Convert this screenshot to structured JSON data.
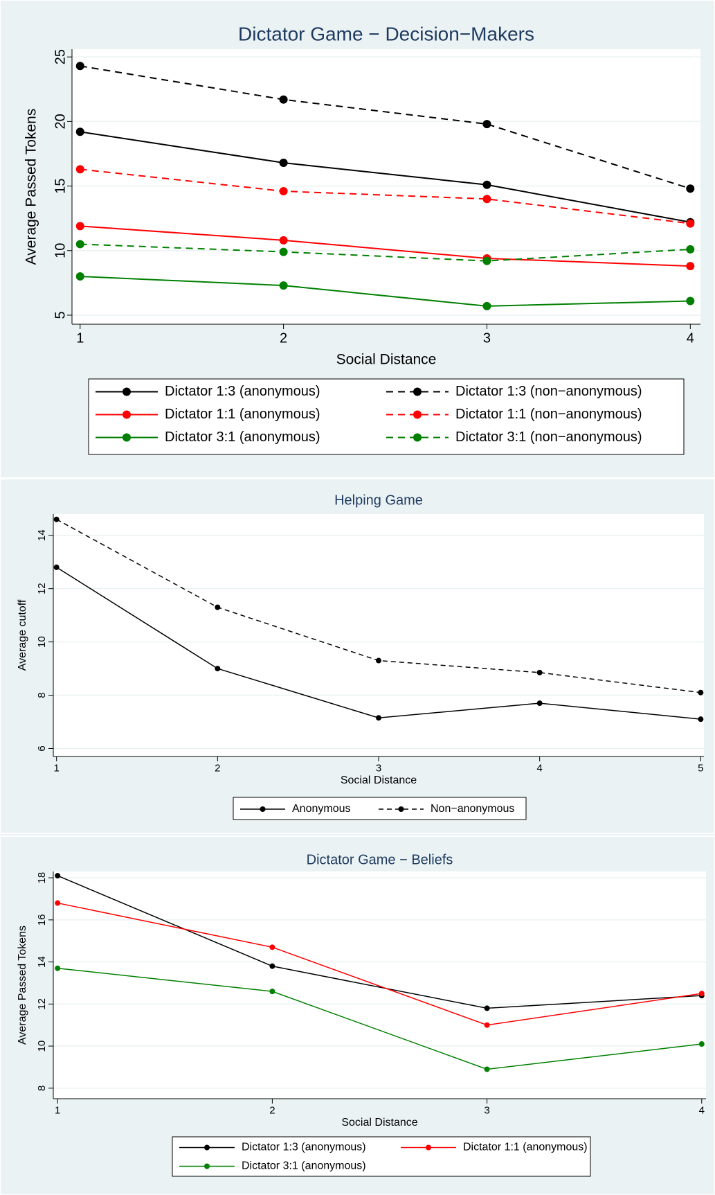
{
  "chart_data": [
    {
      "type": "line",
      "title": "Dictator Game − Decision−Makers",
      "xlabel": "Social Distance",
      "ylabel": "Average Passed Tokens",
      "x": [
        1,
        2,
        3,
        4
      ],
      "xlim": [
        0.96,
        4.05
      ],
      "xticks": [
        1,
        2,
        3,
        4
      ],
      "ylim": [
        4.3,
        25.6
      ],
      "yticks": [
        5,
        10,
        15,
        20,
        25
      ],
      "grid": true,
      "legend_columns": 2,
      "series": [
        {
          "name": "Dictator 1:3 (anonymous)",
          "color": "#000000",
          "dashed": false,
          "values": [
            19.2,
            16.8,
            15.1,
            12.2
          ]
        },
        {
          "name": "Dictator 1:3 (non−anonymous)",
          "color": "#000000",
          "dashed": true,
          "values": [
            24.3,
            21.7,
            19.8,
            14.8
          ]
        },
        {
          "name": "Dictator 1:1 (anonymous)",
          "color": "#ff0000",
          "dashed": false,
          "values": [
            11.9,
            10.8,
            9.4,
            8.8
          ]
        },
        {
          "name": "Dictator 1:1 (non−anonymous)",
          "color": "#ff0000",
          "dashed": true,
          "values": [
            16.3,
            14.6,
            14.0,
            12.1
          ]
        },
        {
          "name": "Dictator 3:1 (anonymous)",
          "color": "#008000",
          "dashed": false,
          "values": [
            8.0,
            7.3,
            5.7,
            6.1
          ]
        },
        {
          "name": "Dictator 3:1 (non−anonymous)",
          "color": "#008000",
          "dashed": true,
          "values": [
            10.5,
            9.9,
            9.2,
            10.1
          ]
        }
      ]
    },
    {
      "type": "line",
      "title": "Helping Game",
      "xlabel": "Social Distance",
      "ylabel": "Average cutoff",
      "x": [
        1,
        2,
        3,
        4,
        5
      ],
      "xlim": [
        0.98,
        5.02
      ],
      "xticks": [
        1,
        2,
        3,
        4,
        5
      ],
      "ylim": [
        5.7,
        14.8
      ],
      "yticks": [
        6,
        8,
        10,
        12,
        14
      ],
      "grid": true,
      "legend_columns": 2,
      "series": [
        {
          "name": "Anonymous",
          "color": "#000000",
          "dashed": false,
          "values": [
            12.8,
            9.0,
            7.15,
            7.7,
            7.1
          ]
        },
        {
          "name": "Non−anonymous",
          "color": "#000000",
          "dashed": true,
          "values": [
            14.6,
            11.3,
            9.3,
            8.85,
            8.1
          ]
        }
      ]
    },
    {
      "type": "line",
      "title": "Dictator Game − Beliefs",
      "xlabel": "Social Distance",
      "ylabel": "Average Passed Tokens",
      "x": [
        1,
        2,
        3,
        4
      ],
      "xlim": [
        0.98,
        4.02
      ],
      "xticks": [
        1,
        2,
        3,
        4
      ],
      "ylim": [
        7.5,
        18.3
      ],
      "yticks": [
        8,
        10,
        12,
        14,
        16,
        18
      ],
      "grid": true,
      "legend_columns": 2,
      "series": [
        {
          "name": "Dictator 1:3 (anonymous)",
          "color": "#000000",
          "dashed": false,
          "values": [
            18.1,
            13.8,
            11.8,
            12.4
          ]
        },
        {
          "name": "Dictator 1:1 (anonymous)",
          "color": "#ff0000",
          "dashed": false,
          "values": [
            16.8,
            14.7,
            11.0,
            12.5
          ]
        },
        {
          "name": "Dictator 3:1 (anonymous)",
          "color": "#008000",
          "dashed": false,
          "values": [
            13.7,
            12.6,
            8.9,
            10.1
          ]
        }
      ]
    }
  ]
}
